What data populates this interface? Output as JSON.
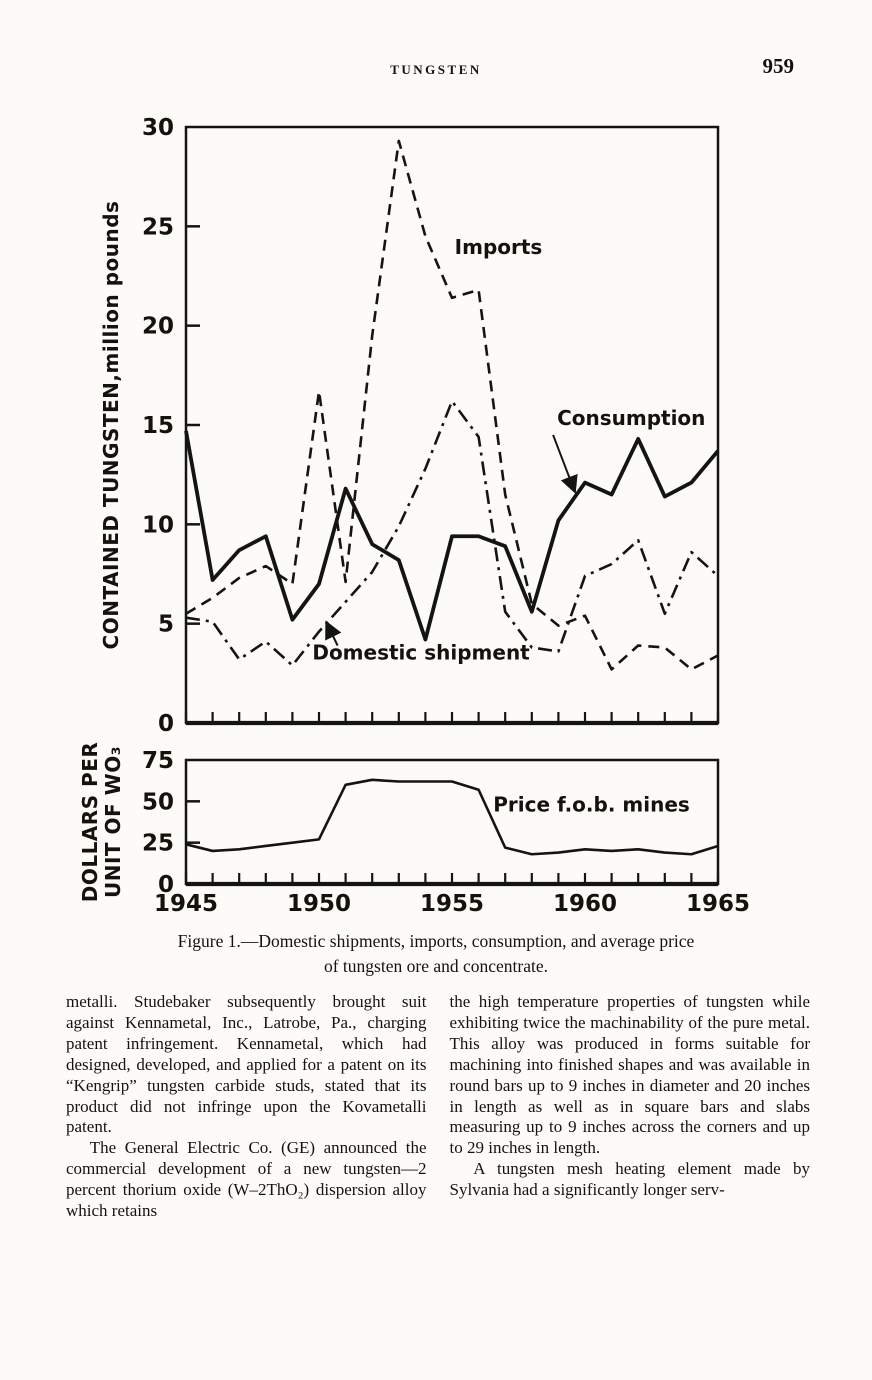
{
  "page_header": {
    "running_title": "TUNGSTEN",
    "page_number": "959"
  },
  "figure_style": {
    "ink": "#141414",
    "paper": "#fcfbf8"
  },
  "figure_caption": {
    "line1": "Figure 1.—Domestic shipments, imports, consumption, and average price",
    "line2": "of tungsten ore and concentrate."
  },
  "body": {
    "left_column": [
      "metalli.  Studebaker subsequently brought suit against Kennametal, Inc., Latrobe, Pa., charging patent infringement.  Kennametal, which had designed, developed, and applied for a patent on its “Kengrip” tungsten carbide studs, stated that its product did not infringe upon the Kovametalli patent.",
      "The General Electric Co. (GE) announced the commercial development of a new tungsten—2 percent thorium oxide (W–2ThO₂) dispersion alloy which retains"
    ],
    "right_column": [
      "the high temperature properties of tungsten while exhibiting twice the machinability of the pure metal.  This alloy was produced in forms suitable for machining into finished shapes and was available in round bars up to 9 inches in diameter and 20 inches in length as well as in square bars and slabs measuring up to 9 inches across the corners and up to 29 inches in length.",
      "A tungsten mesh heating element made by Sylvania had a significantly longer serv-"
    ]
  },
  "chart_data": [
    {
      "type": "line",
      "title": "",
      "ylabel": "CONTAINED TUNGSTEN,million pounds",
      "ylim": [
        0,
        30
      ],
      "yticks": [
        30,
        25,
        20,
        15,
        10,
        5,
        0
      ],
      "x": [
        1945,
        1946,
        1947,
        1948,
        1949,
        1950,
        1951,
        1952,
        1953,
        1954,
        1955,
        1956,
        1957,
        1958,
        1959,
        1960,
        1961,
        1962,
        1963,
        1964,
        1965
      ],
      "series": [
        {
          "name": "Imports",
          "style": "dashed",
          "stroke_width": 2.6,
          "values": [
            5.5,
            6.3,
            7.3,
            7.9,
            7.0,
            16.7,
            7.1,
            19.5,
            29.3,
            24.5,
            21.4,
            21.8,
            11.5,
            6.0,
            4.9,
            5.4,
            2.7,
            3.9,
            3.8,
            2.7,
            3.4
          ]
        },
        {
          "name": "Consumption",
          "style": "solid",
          "stroke_width": 3.8,
          "values": [
            14.7,
            7.2,
            8.7,
            9.4,
            5.2,
            7.0,
            11.8,
            9.0,
            8.2,
            4.2,
            9.4,
            9.4,
            8.9,
            5.6,
            10.2,
            12.1,
            11.5,
            14.3,
            11.4,
            12.1,
            13.7
          ]
        },
        {
          "name": "Domestic shipment",
          "style": "dashdot",
          "stroke_width": 2.6,
          "values": [
            5.3,
            5.1,
            3.2,
            4.1,
            2.9,
            4.6,
            6.1,
            7.6,
            9.9,
            12.8,
            16.2,
            14.4,
            5.6,
            3.8,
            3.6,
            7.4,
            8.0,
            9.2,
            5.5,
            8.6,
            7.4
          ]
        }
      ],
      "annotations": [
        {
          "text": "Imports",
          "x": 1955.1,
          "y": 23.6
        },
        {
          "text": "Consumption",
          "x": 1958.95,
          "y": 15.0,
          "arrow": {
            "from": [
              1958.8,
              14.5
            ],
            "to": [
              1959.6,
              11.7
            ]
          }
        },
        {
          "text": "Domestic shipment",
          "x": 1949.75,
          "y": 3.2,
          "arrow": {
            "from": [
              1950.7,
              3.9
            ],
            "to": [
              1950.3,
              5.0
            ]
          }
        }
      ]
    },
    {
      "type": "line",
      "title": "",
      "ylabel_lines": [
        "DOLLARS PER",
        "UNIT OF WO₃"
      ],
      "ylim": [
        0,
        75
      ],
      "yticks": [
        75,
        50,
        25,
        0
      ],
      "x": [
        1945,
        1946,
        1947,
        1948,
        1949,
        1950,
        1951,
        1952,
        1953,
        1954,
        1955,
        1956,
        1957,
        1958,
        1959,
        1960,
        1961,
        1962,
        1963,
        1964,
        1965
      ],
      "xticks": [
        1945,
        1950,
        1955,
        1960,
        1965
      ],
      "series": [
        {
          "name": "Price f.o.b. mines",
          "style": "solid",
          "stroke_width": 2.6,
          "values": [
            24,
            20,
            21,
            23,
            25,
            27,
            60,
            63,
            62,
            62,
            62,
            57,
            22,
            18,
            19,
            21,
            20,
            21,
            19,
            18,
            23
          ]
        }
      ],
      "annotations": [
        {
          "text": "Price f.o.b. mines",
          "x": 1956.55,
          "y": 44
        }
      ]
    }
  ]
}
